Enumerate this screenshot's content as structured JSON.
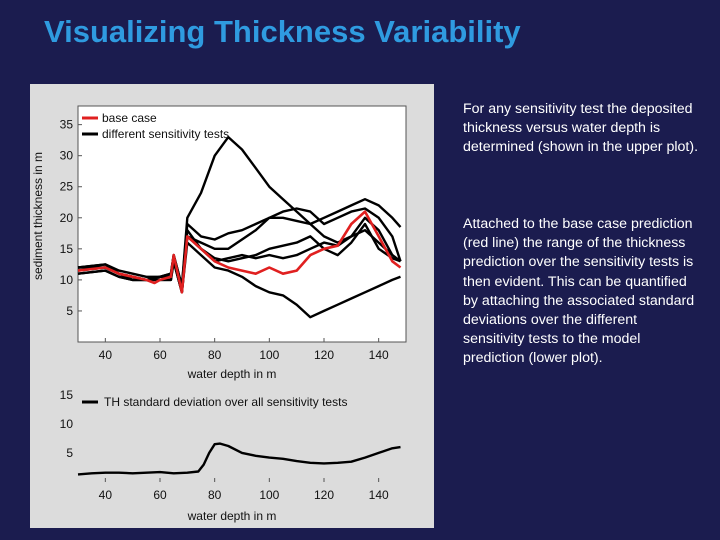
{
  "slide": {
    "title": "Visualizing Thickness Variability",
    "paragraph_1": "For any sensitivity test the deposited thickness versus water depth is determined (shown in the upper plot).",
    "paragraph_2": "Attached to the base case prediction (red line) the range of the thickness prediction over the sensitivity tests is then evident. This can be quantified by attaching the associated standard deviations over the different sensitivity tests to the model prediction (lower plot)."
  },
  "colors": {
    "background": "#1b1c4f",
    "title": "#2f9be0",
    "panel": "#dcdcdc",
    "base_case": "#e02020",
    "sensitivity": "#000000"
  },
  "chart_data": [
    {
      "type": "line",
      "xlabel": "water depth in m",
      "ylabel": "sediment thickness in m",
      "xlim": [
        30,
        150
      ],
      "ylim": [
        0,
        38
      ],
      "xticks": [
        40,
        60,
        80,
        100,
        120,
        140
      ],
      "yticks": [
        5,
        10,
        15,
        20,
        25,
        30,
        35
      ],
      "legend": "top-left",
      "legend_entries": [
        "base case",
        "different sensitivity tests"
      ],
      "series": [
        {
          "name": "base case",
          "color": "red",
          "x": [
            30,
            40,
            45,
            50,
            55,
            58,
            60,
            64,
            65,
            68,
            70,
            75,
            80,
            85,
            90,
            95,
            100,
            105,
            110,
            115,
            120,
            125,
            130,
            135,
            140,
            145,
            148
          ],
          "y": [
            11.5,
            12,
            11,
            10.5,
            10,
            9.5,
            10,
            10.5,
            14,
            8,
            17,
            15,
            13,
            12,
            11.5,
            11,
            12,
            11,
            11.5,
            14,
            15,
            15.5,
            19,
            21,
            17,
            13,
            12
          ]
        },
        {
          "name": "",
          "color": "black",
          "x": [
            30,
            40,
            45,
            50,
            55,
            60,
            64,
            65,
            68,
            70,
            75,
            80,
            85,
            90,
            95,
            100,
            105,
            110,
            115,
            120,
            125,
            130,
            135,
            140,
            145,
            148
          ],
          "y": [
            12,
            12.5,
            11,
            10.5,
            10,
            10.5,
            11,
            14,
            9,
            20,
            24,
            30,
            33,
            31,
            28,
            25,
            23,
            21,
            19,
            17,
            16,
            17,
            18,
            16,
            14,
            13
          ]
        },
        {
          "name": "",
          "color": "black",
          "x": [
            30,
            40,
            45,
            50,
            55,
            60,
            64,
            65,
            68,
            70,
            75,
            80,
            85,
            90,
            95,
            100,
            105,
            110,
            115,
            120,
            125,
            130,
            135,
            140,
            145,
            148
          ],
          "y": [
            12,
            12,
            11,
            10,
            10,
            10.5,
            10.5,
            13,
            8,
            17,
            16,
            15,
            15,
            16.5,
            18,
            20,
            21,
            21.5,
            21,
            19,
            20,
            21,
            21.5,
            20,
            17,
            13
          ]
        },
        {
          "name": "",
          "color": "black",
          "x": [
            30,
            40,
            45,
            50,
            55,
            60,
            64,
            65,
            68,
            70,
            75,
            80,
            85,
            90,
            95,
            100,
            105,
            110,
            115,
            120,
            125,
            130,
            135,
            140,
            145,
            148
          ],
          "y": [
            11,
            11.5,
            10.5,
            10,
            10,
            10,
            10,
            13,
            8,
            18,
            15,
            13.5,
            13,
            13.5,
            14,
            15,
            15.5,
            16,
            17,
            15,
            14,
            16,
            19,
            15,
            13.5,
            13
          ]
        },
        {
          "name": "",
          "color": "black",
          "x": [
            30,
            40,
            45,
            50,
            55,
            60,
            64,
            65,
            68,
            70,
            75,
            80,
            85,
            90,
            95,
            100,
            105,
            110,
            115,
            120,
            125,
            130,
            135,
            140,
            145,
            148
          ],
          "y": [
            11.5,
            12,
            11,
            10.5,
            10,
            10.5,
            10.5,
            14,
            8.5,
            17,
            15,
            13,
            13.5,
            14,
            13.5,
            14,
            13.5,
            14,
            15,
            16,
            15.5,
            17,
            20,
            18,
            14,
            13
          ]
        },
        {
          "name": "",
          "color": "black",
          "x": [
            30,
            40,
            45,
            50,
            55,
            60,
            64,
            65,
            68,
            70,
            75,
            80,
            85,
            90,
            95,
            100,
            105,
            110,
            115,
            120,
            125,
            130,
            135,
            140,
            145,
            148
          ],
          "y": [
            11,
            11.5,
            10.5,
            10,
            10,
            10,
            10,
            13,
            8,
            16,
            14,
            12,
            11.5,
            10.5,
            9,
            8,
            7.5,
            6,
            4,
            5,
            6,
            7,
            8,
            9,
            10,
            10.5
          ]
        },
        {
          "name": "",
          "color": "black",
          "x": [
            30,
            40,
            45,
            50,
            55,
            60,
            64,
            65,
            68,
            70,
            75,
            80,
            85,
            90,
            95,
            100,
            105,
            110,
            115,
            120,
            125,
            130,
            135,
            140,
            145,
            148
          ],
          "y": [
            12,
            12.5,
            11.5,
            11,
            10.5,
            10.5,
            11,
            14,
            9,
            19,
            17,
            16.5,
            17.5,
            18,
            19,
            20,
            20,
            19.5,
            19,
            20,
            21,
            22,
            23,
            22,
            20,
            18.5
          ]
        }
      ]
    },
    {
      "type": "line",
      "xlabel": "water depth in m",
      "ylabel": "",
      "xlim": [
        30,
        150
      ],
      "ylim": [
        0,
        16
      ],
      "xticks": [
        40,
        60,
        80,
        100,
        120,
        140
      ],
      "yticks": [
        5,
        10,
        15
      ],
      "legend": "top-left",
      "legend_entries": [
        "TH standard deviation over all sensitivity tests"
      ],
      "series": [
        {
          "name": "TH standard deviation over all sensitivity tests",
          "color": "black",
          "x": [
            30,
            35,
            40,
            45,
            50,
            55,
            60,
            65,
            70,
            74,
            76,
            78,
            80,
            82,
            85,
            90,
            95,
            100,
            105,
            110,
            115,
            120,
            125,
            130,
            135,
            140,
            145,
            148
          ],
          "y": [
            1.3,
            1.5,
            1.6,
            1.6,
            1.5,
            1.6,
            1.7,
            1.5,
            1.6,
            1.8,
            3,
            5,
            6.5,
            6.6,
            6.2,
            5,
            4.5,
            4.2,
            4,
            3.6,
            3.3,
            3.2,
            3.3,
            3.5,
            4.2,
            5,
            5.8,
            6
          ]
        }
      ]
    }
  ]
}
